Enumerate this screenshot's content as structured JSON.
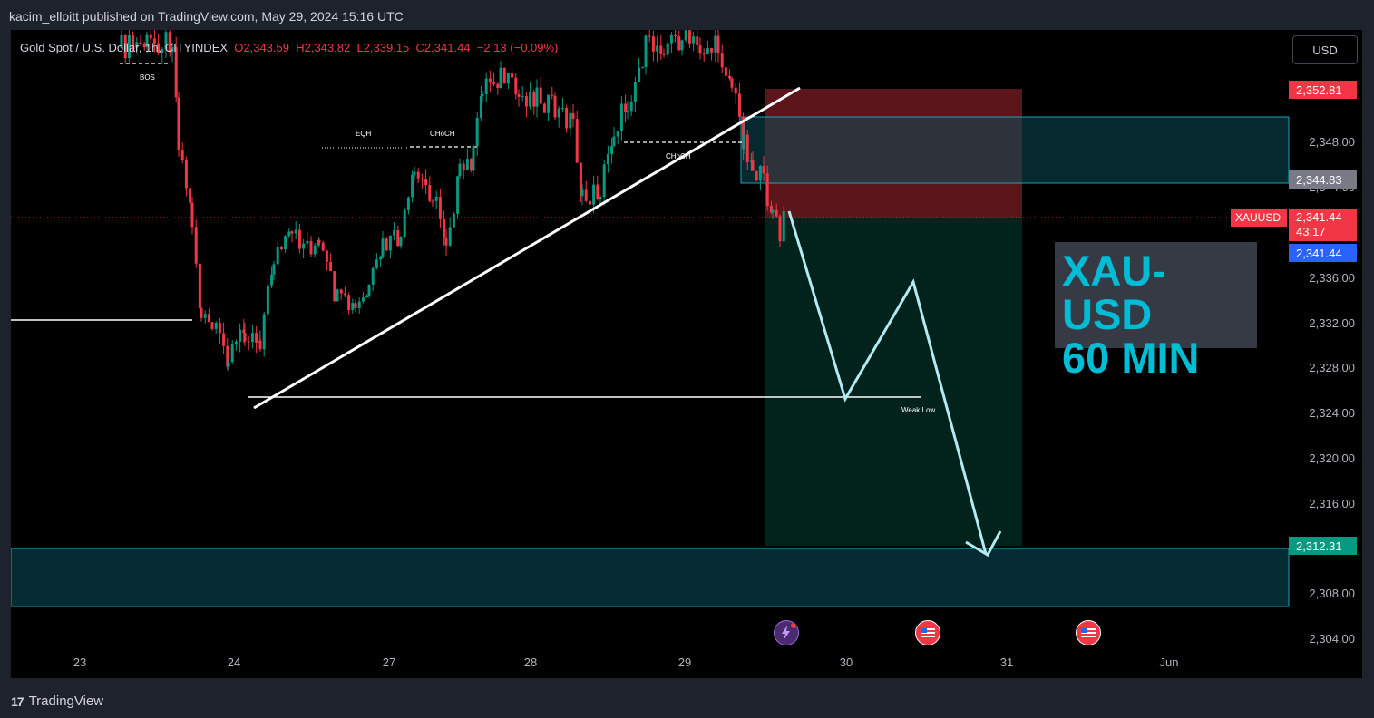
{
  "header": {
    "publisher_text": "kacim_elloitt published on TradingView.com, May 29, 2024 15:16 UTC"
  },
  "legend": {
    "symbol": "Gold Spot / U.S. Dollar, 1h, CITYINDEX",
    "open": "O2,343.59",
    "high": "H2,343.82",
    "low": "L2,339.15",
    "close": "C2,341.44",
    "change": "−2.13 (−0.09%)"
  },
  "currency_button": "USD",
  "price_axis": [
    "2,348.00",
    "2,344.00",
    "2,336.00",
    "2,332.00",
    "2,328.00",
    "2,324.00",
    "2,320.00",
    "2,316.00",
    "2,308.00",
    "2,304.00"
  ],
  "price_tags": {
    "stop": "2,352.81",
    "entry": "2,344.83",
    "symbol": "XAUUSD",
    "current": "2,341.44",
    "countdown": "43:17",
    "current_blue": "2,341.44",
    "target": "2,312.31"
  },
  "date_axis": [
    "23",
    "24",
    "27",
    "28",
    "29",
    "30",
    "31",
    "Jun"
  ],
  "annotations": {
    "bos": "BOS",
    "eqh": "EQH",
    "choch1": "CHoCH",
    "choch2": "CHoCH",
    "weak_low": "Weak Low"
  },
  "title_box": {
    "line1": "XAU-USD",
    "line2": "60 MIN"
  },
  "footer": {
    "brand": "TradingView"
  },
  "colors": {
    "up": "#089981",
    "down": "#f23645",
    "accent": "#00bcd4",
    "tag_blue": "#2962ff"
  },
  "icons": [
    "lightning-event-icon",
    "us-flag-event-icon",
    "us-flag-event-icon"
  ]
}
